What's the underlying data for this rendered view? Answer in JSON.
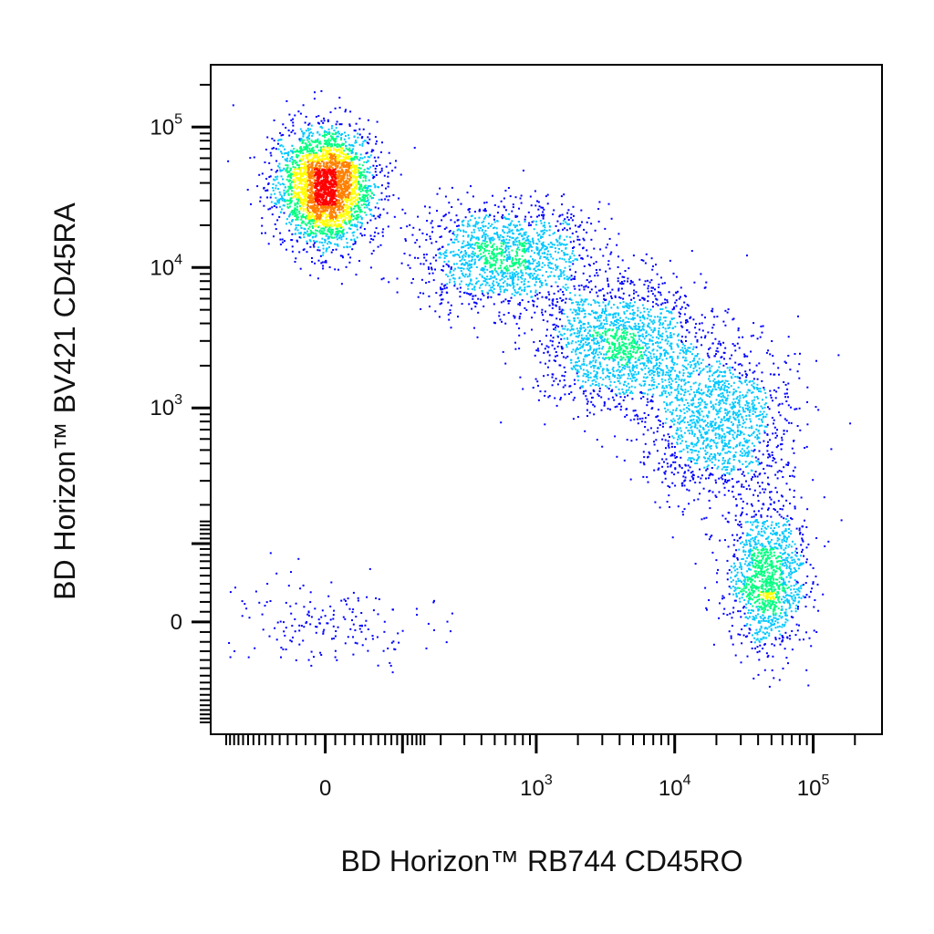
{
  "chart_data": {
    "type": "scatter",
    "title": "",
    "xlabel": "BD Horizon™ RB744 CD45RO",
    "ylabel": "BD Horizon™ BV421 CD45RA",
    "x_scale": "biexponential",
    "y_scale": "biexponential",
    "xlim": [
      -150,
      250000
    ],
    "ylim": [
      -150,
      250000
    ],
    "x_ticks": [
      {
        "value": 0,
        "base": "0",
        "exp": ""
      },
      {
        "value": 1000,
        "base": "10",
        "exp": "3"
      },
      {
        "value": 10000,
        "base": "10",
        "exp": "4"
      },
      {
        "value": 100000,
        "base": "10",
        "exp": "5"
      }
    ],
    "y_ticks": [
      {
        "value": 0,
        "base": "0",
        "exp": ""
      },
      {
        "value": 1000,
        "base": "10",
        "exp": "3"
      },
      {
        "value": 10000,
        "base": "10",
        "exp": "4"
      },
      {
        "value": 100000,
        "base": "10",
        "exp": "5"
      }
    ],
    "color_scale": [
      "#0000ff",
      "#00c8ff",
      "#00ff80",
      "#ffff00",
      "#ff8000",
      "#ff0000"
    ],
    "populations": [
      {
        "name_hidden": true,
        "center_x": 0,
        "center_y": 38000,
        "share": 0.34,
        "peak_density": "high"
      },
      {
        "name_hidden": true,
        "center_x": 600,
        "center_y": 12000,
        "share": 0.16,
        "peak_density": "medium"
      },
      {
        "name_hidden": true,
        "center_x": 4000,
        "center_y": 3000,
        "share": 0.18,
        "peak_density": "medium"
      },
      {
        "name_hidden": true,
        "center_x": 20000,
        "center_y": 800,
        "share": 0.16,
        "peak_density": "medium"
      },
      {
        "name_hidden": true,
        "center_x": 45000,
        "center_y": 50,
        "share": 0.14,
        "peak_density": "medium"
      },
      {
        "name_hidden": true,
        "center_x": 0,
        "center_y": 0,
        "share": 0.02,
        "peak_density": "low"
      }
    ]
  }
}
